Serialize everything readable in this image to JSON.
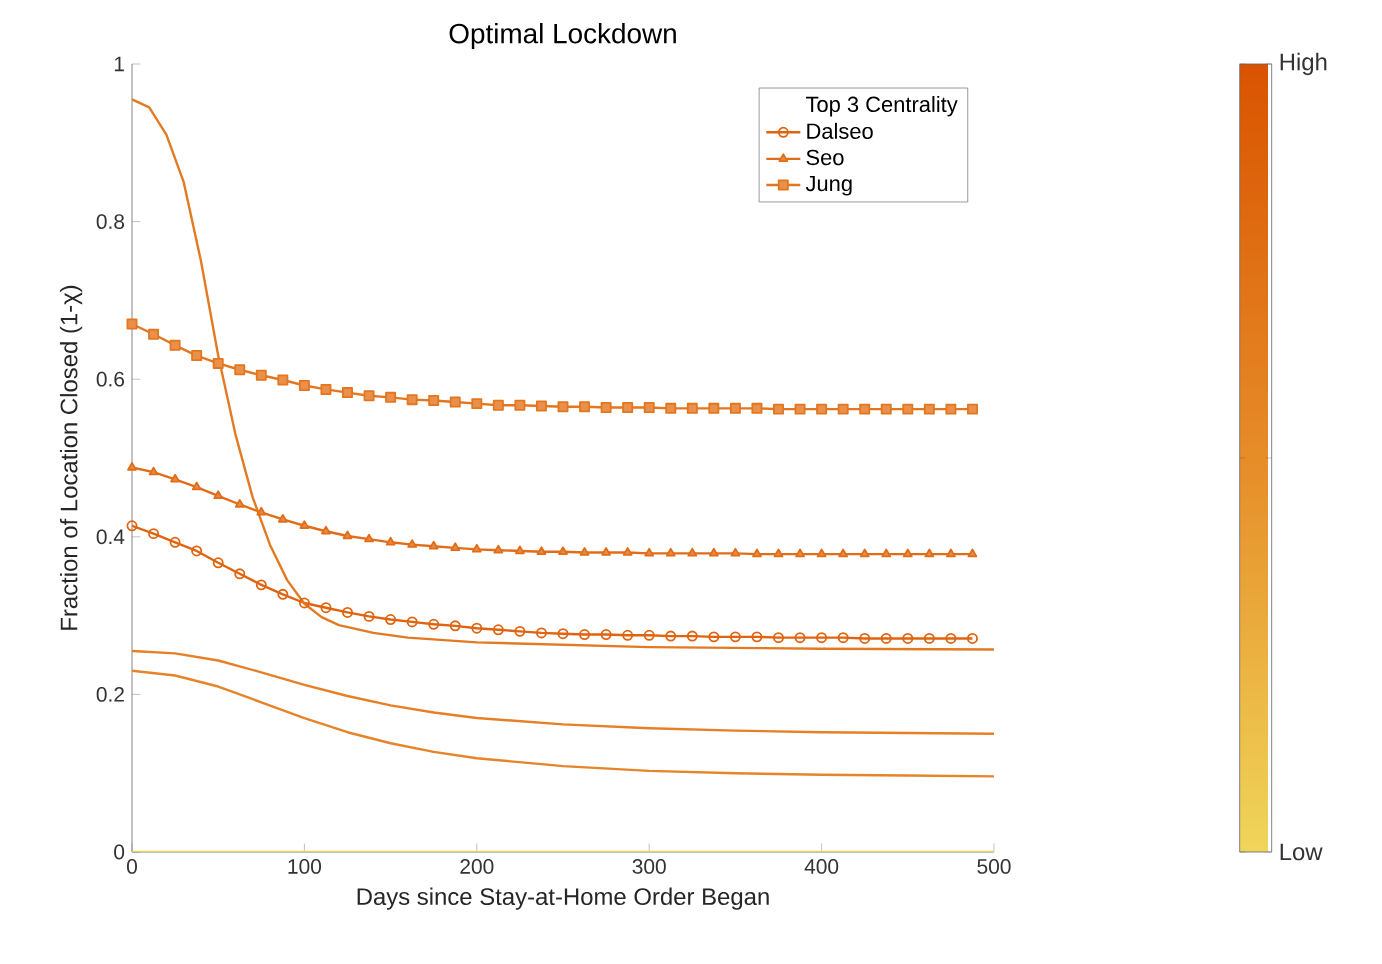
{
  "chart_data": {
    "type": "line",
    "title": "Optimal Lockdown",
    "xlabel": "Days since Stay-at-Home Order Began",
    "ylabel": "Fraction of Location Closed (1-χ)",
    "legend_title": "Top 3 Centrality",
    "legend": "top right",
    "grid": false,
    "marker": "none",
    "line_style": "solid",
    "xlim": [
      0,
      500
    ],
    "ylim": [
      0,
      1
    ],
    "xticks": [
      0,
      100,
      200,
      300,
      400,
      500
    ],
    "yticks": [
      0,
      0.2,
      0.4,
      0.6,
      0.8,
      1
    ],
    "clim": [
      0,
      1
    ],
    "cticks": [
      {
        "value": 0,
        "label": "Low"
      },
      {
        "value": 0.5,
        "label": null
      },
      {
        "value": 1,
        "label": "High"
      }
    ],
    "series": [
      {
        "name": "Dalseo",
        "color": "#e0640f",
        "marker": "circle",
        "x": [
          0,
          12.5,
          25,
          37.5,
          50,
          62.5,
          75,
          87.5,
          100,
          112.5,
          125,
          137.5,
          150,
          162.5,
          175,
          187.5,
          200,
          212.5,
          225,
          237.5,
          250,
          262.5,
          275,
          287.5,
          300,
          312.5,
          325,
          337.5,
          350,
          362.5,
          375,
          387.5,
          400,
          412.5,
          425,
          437.5,
          450,
          462.5,
          475,
          487.5
        ],
        "values": [
          0.414,
          0.404,
          0.393,
          0.382,
          0.367,
          0.353,
          0.339,
          0.327,
          0.316,
          0.31,
          0.304,
          0.299,
          0.295,
          0.292,
          0.289,
          0.287,
          0.284,
          0.282,
          0.28,
          0.278,
          0.277,
          0.276,
          0.276,
          0.275,
          0.275,
          0.274,
          0.274,
          0.273,
          0.273,
          0.273,
          0.272,
          0.272,
          0.272,
          0.272,
          0.271,
          0.271,
          0.271,
          0.271,
          0.271,
          0.271
        ]
      },
      {
        "name": "Seo",
        "color": "#e26d18",
        "marker": "triangle",
        "x": [
          0,
          12.5,
          25,
          37.5,
          50,
          62.5,
          75,
          87.5,
          100,
          112.5,
          125,
          137.5,
          150,
          162.5,
          175,
          187.5,
          200,
          212.5,
          225,
          237.5,
          250,
          262.5,
          275,
          287.5,
          300,
          312.5,
          325,
          337.5,
          350,
          362.5,
          375,
          387.5,
          400,
          412.5,
          425,
          437.5,
          450,
          462.5,
          475,
          487.5
        ],
        "values": [
          0.488,
          0.482,
          0.473,
          0.463,
          0.452,
          0.441,
          0.431,
          0.422,
          0.414,
          0.407,
          0.401,
          0.397,
          0.393,
          0.39,
          0.388,
          0.386,
          0.384,
          0.383,
          0.382,
          0.381,
          0.381,
          0.38,
          0.38,
          0.38,
          0.379,
          0.379,
          0.379,
          0.379,
          0.379,
          0.378,
          0.378,
          0.378,
          0.378,
          0.378,
          0.378,
          0.378,
          0.378,
          0.378,
          0.378,
          0.378
        ]
      },
      {
        "name": "Jung",
        "color": "#e4761f",
        "marker": "square",
        "x": [
          0,
          12.5,
          25,
          37.5,
          50,
          62.5,
          75,
          87.5,
          100,
          112.5,
          125,
          137.5,
          150,
          162.5,
          175,
          187.5,
          200,
          212.5,
          225,
          237.5,
          250,
          262.5,
          275,
          287.5,
          300,
          312.5,
          325,
          337.5,
          350,
          362.5,
          375,
          387.5,
          400,
          412.5,
          425,
          437.5,
          450,
          462.5,
          475,
          487.5
        ],
        "values": [
          0.67,
          0.657,
          0.643,
          0.63,
          0.62,
          0.612,
          0.605,
          0.599,
          0.592,
          0.587,
          0.583,
          0.579,
          0.577,
          0.574,
          0.573,
          0.571,
          0.569,
          0.567,
          0.567,
          0.566,
          0.565,
          0.565,
          0.564,
          0.564,
          0.564,
          0.563,
          0.563,
          0.563,
          0.563,
          0.563,
          0.562,
          0.562,
          0.562,
          0.562,
          0.562,
          0.562,
          0.562,
          0.562,
          0.562,
          0.562
        ]
      },
      {
        "color": "#e37a22",
        "x": [
          0,
          10,
          20,
          30,
          40,
          50,
          60,
          70,
          80,
          90,
          100,
          110,
          120,
          140,
          160,
          200,
          300,
          400,
          500
        ],
        "values": [
          0.955,
          0.945,
          0.91,
          0.85,
          0.75,
          0.63,
          0.53,
          0.45,
          0.39,
          0.345,
          0.315,
          0.298,
          0.288,
          0.278,
          0.272,
          0.266,
          0.26,
          0.258,
          0.257
        ]
      },
      {
        "color": "#e67f25",
        "x": [
          0,
          25,
          50,
          75,
          100,
          125,
          150,
          175,
          200,
          250,
          300,
          350,
          400,
          450,
          500
        ],
        "values": [
          0.255,
          0.252,
          0.243,
          0.228,
          0.212,
          0.198,
          0.186,
          0.177,
          0.17,
          0.162,
          0.157,
          0.154,
          0.152,
          0.151,
          0.15
        ]
      },
      {
        "color": "#e6842a",
        "x": [
          0,
          25,
          50,
          75,
          100,
          125,
          150,
          175,
          200,
          250,
          300,
          350,
          400,
          450,
          500
        ],
        "values": [
          0.23,
          0.224,
          0.21,
          0.19,
          0.17,
          0.152,
          0.138,
          0.127,
          0.119,
          0.109,
          0.103,
          0.1,
          0.098,
          0.097,
          0.096
        ]
      },
      {
        "color": "#efd255",
        "x": [
          0,
          500
        ],
        "values": [
          0,
          0
        ]
      }
    ]
  }
}
